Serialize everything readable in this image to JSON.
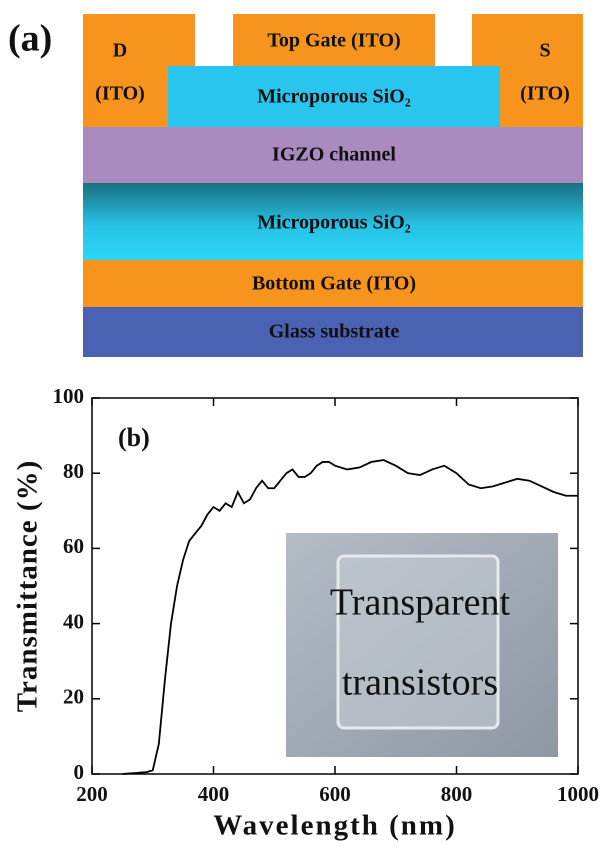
{
  "diagram": {
    "panel_label": "(a)",
    "drain": [
      "D",
      "(ITO)"
    ],
    "top_gate": "Top Gate (ITO)",
    "source": [
      "S",
      "(ITO)"
    ],
    "top_dielectric": "Microporous SiO₂",
    "channel": "IGZO channel",
    "bottom_dielectric": "Microporous SiO₂",
    "bottom_gate": "Bottom Gate (ITO)",
    "substrate": "Glass substrate"
  },
  "chart_data": {
    "type": "line",
    "annotation": "(b)",
    "x_label": "Wavelength (nm)",
    "y_label": "Transmittance (%)",
    "x": [
      250,
      290,
      300,
      310,
      320,
      330,
      340,
      350,
      360,
      370,
      380,
      390,
      400,
      410,
      420,
      430,
      440,
      450,
      460,
      470,
      480,
      490,
      500,
      510,
      520,
      530,
      540,
      550,
      560,
      570,
      580,
      590,
      600,
      620,
      640,
      660,
      680,
      700,
      720,
      740,
      760,
      780,
      800,
      820,
      840,
      860,
      880,
      900,
      920,
      940,
      960,
      980,
      1000
    ],
    "values": [
      0,
      0.5,
      1,
      8,
      25,
      40,
      50,
      57,
      62,
      64,
      66,
      69,
      71,
      70,
      72,
      71,
      75,
      72,
      73,
      76,
      78,
      76,
      76,
      78,
      80,
      81,
      79,
      79,
      80,
      82,
      83,
      83,
      82,
      81,
      81.5,
      83,
      83.5,
      82,
      80,
      79.5,
      81,
      82,
      80,
      77,
      76,
      76.5,
      77.5,
      78.5,
      78,
      76.5,
      75,
      74,
      74
    ],
    "color": "#000000",
    "xlim": [
      200,
      1000
    ],
    "ylim": [
      0,
      100
    ],
    "xticks": [
      200,
      400,
      600,
      800,
      1000
    ],
    "yticks": [
      0,
      20,
      40,
      60,
      80,
      100
    ],
    "inset_text": [
      "Transparent",
      "transistors"
    ]
  }
}
